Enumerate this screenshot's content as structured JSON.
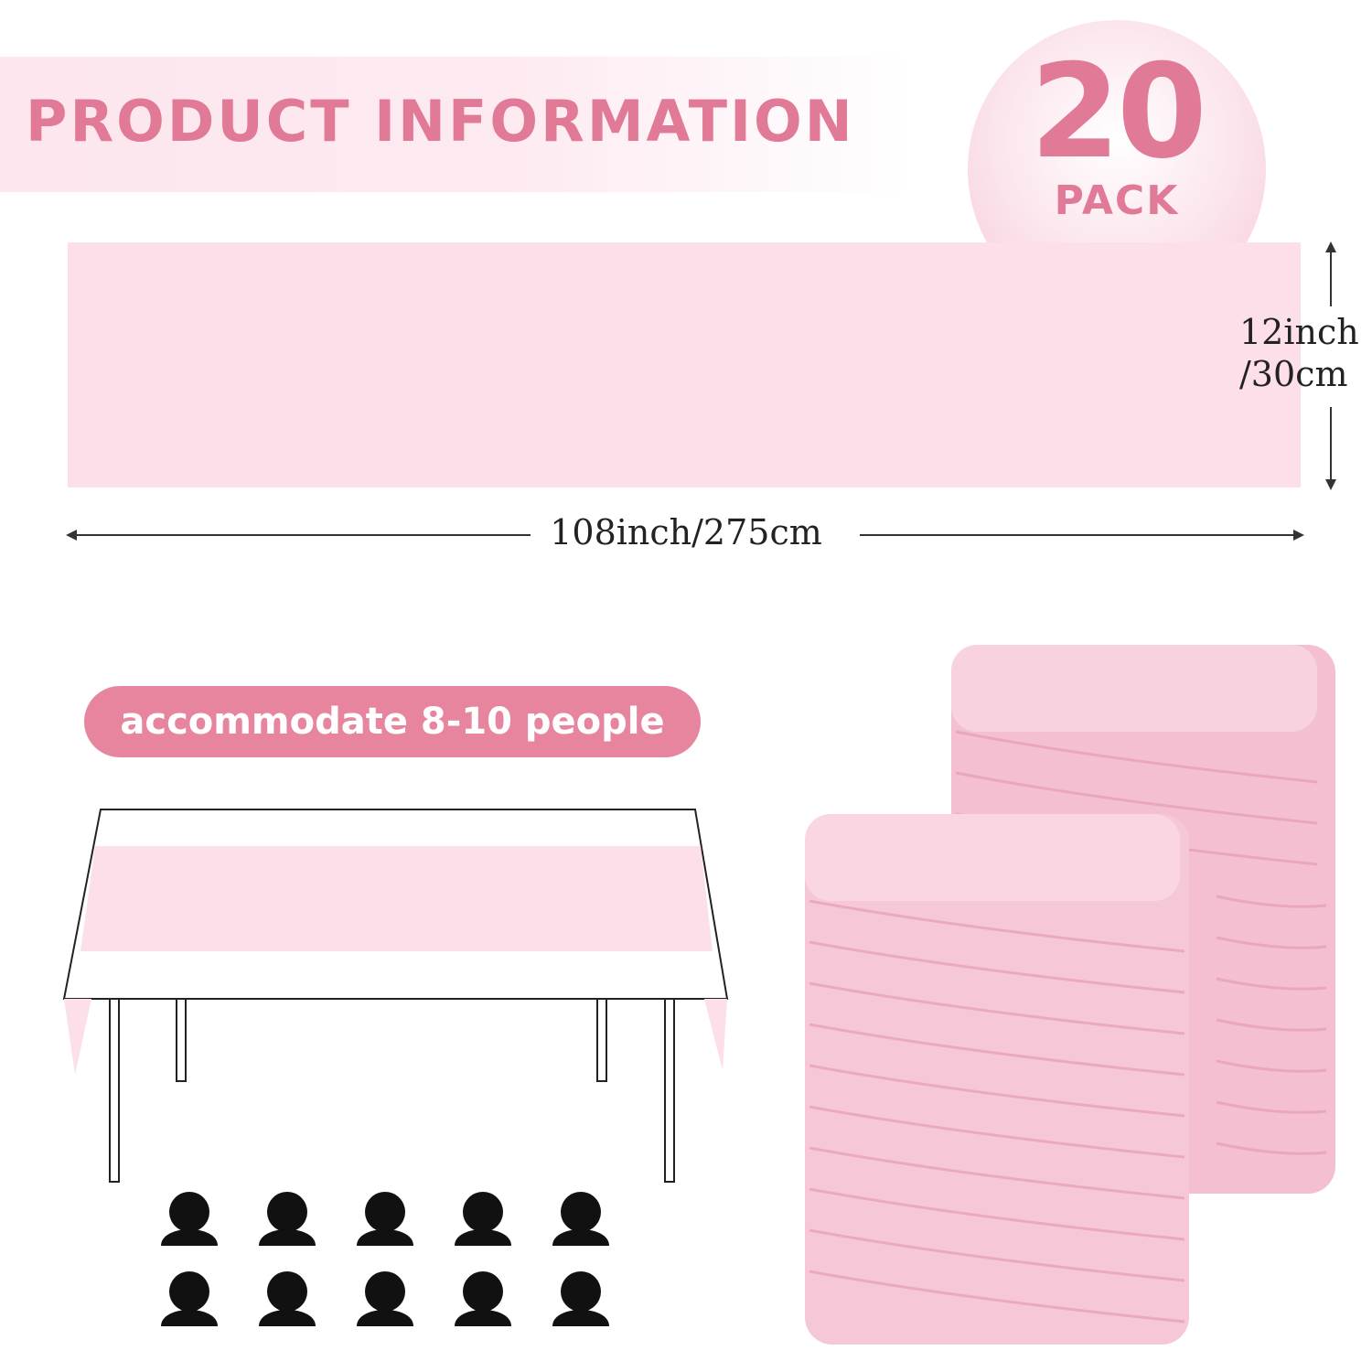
{
  "banner": {
    "title": "PRODUCT INFORMATION"
  },
  "badge": {
    "count": "20",
    "unit": "PACK"
  },
  "dimensions": {
    "height_line1": "12inch",
    "height_line2": "/30cm",
    "length": "108inch/275cm"
  },
  "capacity": {
    "label": "accommodate 8-10 people"
  },
  "colors": {
    "accent": "#e07a97",
    "runner": "#fcdfe8",
    "pill": "#e7859f"
  },
  "icons": {
    "person": "person-icon"
  }
}
